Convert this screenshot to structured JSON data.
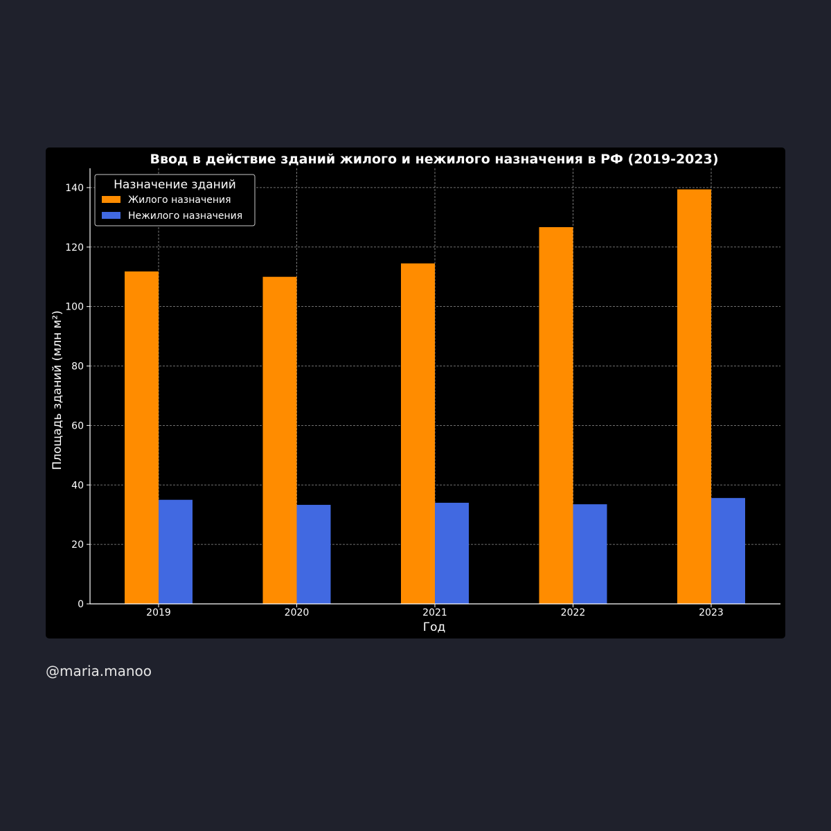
{
  "watermark": "@maria.manoo",
  "colors": {
    "page_background": "#1f212c",
    "chart_background": "#000000",
    "residential": "#ff8c00",
    "nonresidential": "#4169e1",
    "text": "#ffffff",
    "grid": "#b0b0b0"
  },
  "chart_data": {
    "type": "bar",
    "title": "Ввод в действие зданий жилого и нежилого назначения в РФ (2019-2023)",
    "xlabel": "Год",
    "ylabel": "Площадь зданий (млн м²)",
    "categories": [
      "2019",
      "2020",
      "2021",
      "2022",
      "2023"
    ],
    "series": [
      {
        "name": "Жилого назначения",
        "color": "#ff8c00",
        "values": [
          111.8,
          110.0,
          114.5,
          126.7,
          139.4
        ]
      },
      {
        "name": "Нежилого назначения",
        "color": "#4169e1",
        "values": [
          35.0,
          33.3,
          34.0,
          33.5,
          35.6
        ]
      }
    ],
    "ylim": [
      0,
      146.5
    ],
    "yticks": [
      0,
      20,
      40,
      60,
      80,
      100,
      120,
      140
    ],
    "grid": true,
    "legend": {
      "title": "Назначение зданий",
      "position": "top-left"
    }
  }
}
